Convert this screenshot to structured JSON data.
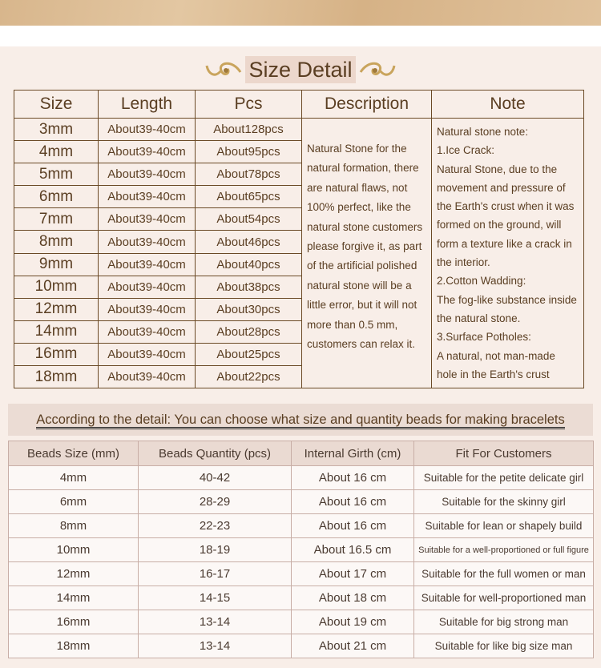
{
  "size_detail": {
    "title": "Size Detail",
    "headers": [
      "Size",
      "Length",
      "Pcs",
      "Description",
      "Note"
    ],
    "rows": [
      [
        "3mm",
        "About39-40cm",
        "About128pcs"
      ],
      [
        "4mm",
        "About39-40cm",
        "About95pcs"
      ],
      [
        "5mm",
        "About39-40cm",
        "About78pcs"
      ],
      [
        "6mm",
        "About39-40cm",
        "About65pcs"
      ],
      [
        "7mm",
        "About39-40cm",
        "About54pcs"
      ],
      [
        "8mm",
        "About39-40cm",
        "About46pcs"
      ],
      [
        "9mm",
        "About39-40cm",
        "About40pcs"
      ],
      [
        "10mm",
        "About39-40cm",
        "About38pcs"
      ],
      [
        "12mm",
        "About39-40cm",
        "About30pcs"
      ],
      [
        "14mm",
        "About39-40cm",
        "About28pcs"
      ],
      [
        "16mm",
        "About39-40cm",
        "About25pcs"
      ],
      [
        "18mm",
        "About39-40cm",
        "About22pcs"
      ]
    ],
    "description": "Natural Stone for the natural formation, there are natural flaws, not 100% perfect, like the natural stone customers please forgive it, as part of the artificial polished natural stone will be a little error, but it will not more than 0.5 mm, customers can relax it.",
    "note": [
      "Natural stone note:",
      "1.Ice Crack:",
      "Natural Stone, due to the movement and pressure of the Earth's crust when it was formed on the ground, will form a texture like a crack in the interior.",
      "2.Cotton Wadding:",
      "The fog-like substance inside the natural stone.",
      "3.Surface Potholes:",
      "A natural, not man-made hole in the Earth's crust"
    ]
  },
  "bracelet_guide": {
    "banner": "According to the detail: You can choose what size and quantity beads for making bracelets",
    "headers": [
      "Beads Size (mm)",
      "Beads Quantity (pcs)",
      "Internal Girth (cm)",
      "Fit For Customers"
    ],
    "rows": [
      [
        "4mm",
        "40-42",
        "About 16 cm",
        "Suitable for the petite delicate girl"
      ],
      [
        "6mm",
        "28-29",
        "About 16 cm",
        "Suitable for the skinny girl"
      ],
      [
        "8mm",
        "22-23",
        "About 16 cm",
        "Suitable for lean or shapely build"
      ],
      [
        "10mm",
        "18-19",
        "About 16.5 cm",
        "Suitable for a well-proportioned or full figure"
      ],
      [
        "12mm",
        "16-17",
        "About 17 cm",
        "Suitable for the full women or man"
      ],
      [
        "14mm",
        "14-15",
        "About 18 cm",
        "Suitable for well-proportioned man"
      ],
      [
        "16mm",
        "13-14",
        "About 19 cm",
        "Suitable for big strong man"
      ],
      [
        "18mm",
        "13-14",
        "About 21 cm",
        "Suitable for like big size man"
      ]
    ]
  },
  "colors": {
    "text": "#5a3e22",
    "border": "#6b4a26",
    "background": "#f8eee8",
    "ornament": "#c9a45c"
  }
}
